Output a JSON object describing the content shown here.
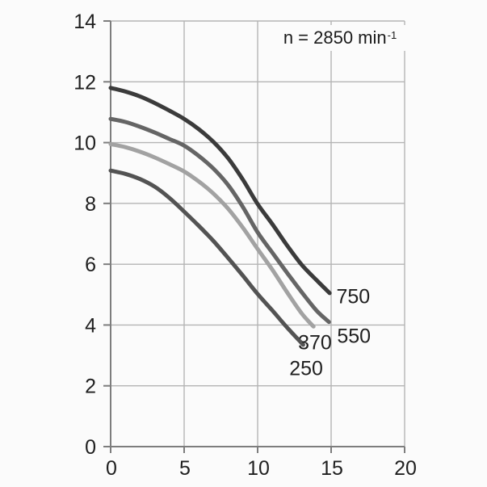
{
  "chart_data": {
    "type": "line",
    "title": "",
    "xlabel": "",
    "ylabel": "",
    "xlim": [
      0,
      20
    ],
    "ylim": [
      0,
      14
    ],
    "xticks": [
      0,
      5,
      10,
      15,
      20
    ],
    "yticks": [
      0,
      2,
      4,
      6,
      8,
      10,
      12,
      14
    ],
    "grid": true,
    "annotation": {
      "text": "n = 2850 min",
      "exponent": "-1"
    },
    "legend_position": "inline-labels-at-curve-ends",
    "series": [
      {
        "name": "750",
        "color": "#3b3b3b",
        "label_at": [
          16.5,
          4.92
        ],
        "points": [
          [
            0,
            11.8
          ],
          [
            1,
            11.68
          ],
          [
            2,
            11.52
          ],
          [
            3,
            11.3
          ],
          [
            4,
            11.05
          ],
          [
            5,
            10.78
          ],
          [
            6,
            10.44
          ],
          [
            7,
            10.02
          ],
          [
            8,
            9.48
          ],
          [
            9,
            8.78
          ],
          [
            10,
            7.98
          ],
          [
            11,
            7.32
          ],
          [
            12,
            6.62
          ],
          [
            13,
            5.98
          ],
          [
            14,
            5.48
          ],
          [
            14.9,
            5.05
          ]
        ]
      },
      {
        "name": "550",
        "color": "#656565",
        "label_at": [
          16.55,
          3.61
        ],
        "points": [
          [
            0,
            10.78
          ],
          [
            1,
            10.68
          ],
          [
            2,
            10.52
          ],
          [
            3,
            10.33
          ],
          [
            4,
            10.12
          ],
          [
            5,
            9.9
          ],
          [
            6,
            9.56
          ],
          [
            7,
            9.14
          ],
          [
            8,
            8.6
          ],
          [
            9,
            7.88
          ],
          [
            10,
            7.05
          ],
          [
            11,
            6.38
          ],
          [
            12,
            5.72
          ],
          [
            13,
            5.08
          ],
          [
            14,
            4.48
          ],
          [
            14.85,
            4.1
          ]
        ]
      },
      {
        "name": "370",
        "color": "#a2a2a2",
        "label_at": [
          13.9,
          3.4
        ],
        "points": [
          [
            0,
            9.95
          ],
          [
            1,
            9.85
          ],
          [
            2,
            9.7
          ],
          [
            3,
            9.51
          ],
          [
            4,
            9.29
          ],
          [
            5,
            9.05
          ],
          [
            6,
            8.72
          ],
          [
            7,
            8.32
          ],
          [
            8,
            7.82
          ],
          [
            9,
            7.2
          ],
          [
            10,
            6.5
          ],
          [
            11,
            5.82
          ],
          [
            12,
            5.08
          ],
          [
            13,
            4.38
          ],
          [
            13.8,
            3.95
          ]
        ]
      },
      {
        "name": "250",
        "color": "#535353",
        "label_at": [
          13.3,
          2.55
        ],
        "points": [
          [
            0,
            9.08
          ],
          [
            1,
            8.97
          ],
          [
            2,
            8.8
          ],
          [
            3,
            8.55
          ],
          [
            4,
            8.18
          ],
          [
            5,
            7.73
          ],
          [
            6,
            7.26
          ],
          [
            7,
            6.76
          ],
          [
            8,
            6.2
          ],
          [
            9,
            5.62
          ],
          [
            10,
            5.02
          ],
          [
            11,
            4.48
          ],
          [
            12,
            3.92
          ],
          [
            13.1,
            3.35
          ]
        ]
      }
    ],
    "colors": {
      "background": "#fbfbfb",
      "gridline": "#b4b4b4",
      "axis": "#7d7d7d",
      "tick_label": "#1f1f1f"
    }
  }
}
